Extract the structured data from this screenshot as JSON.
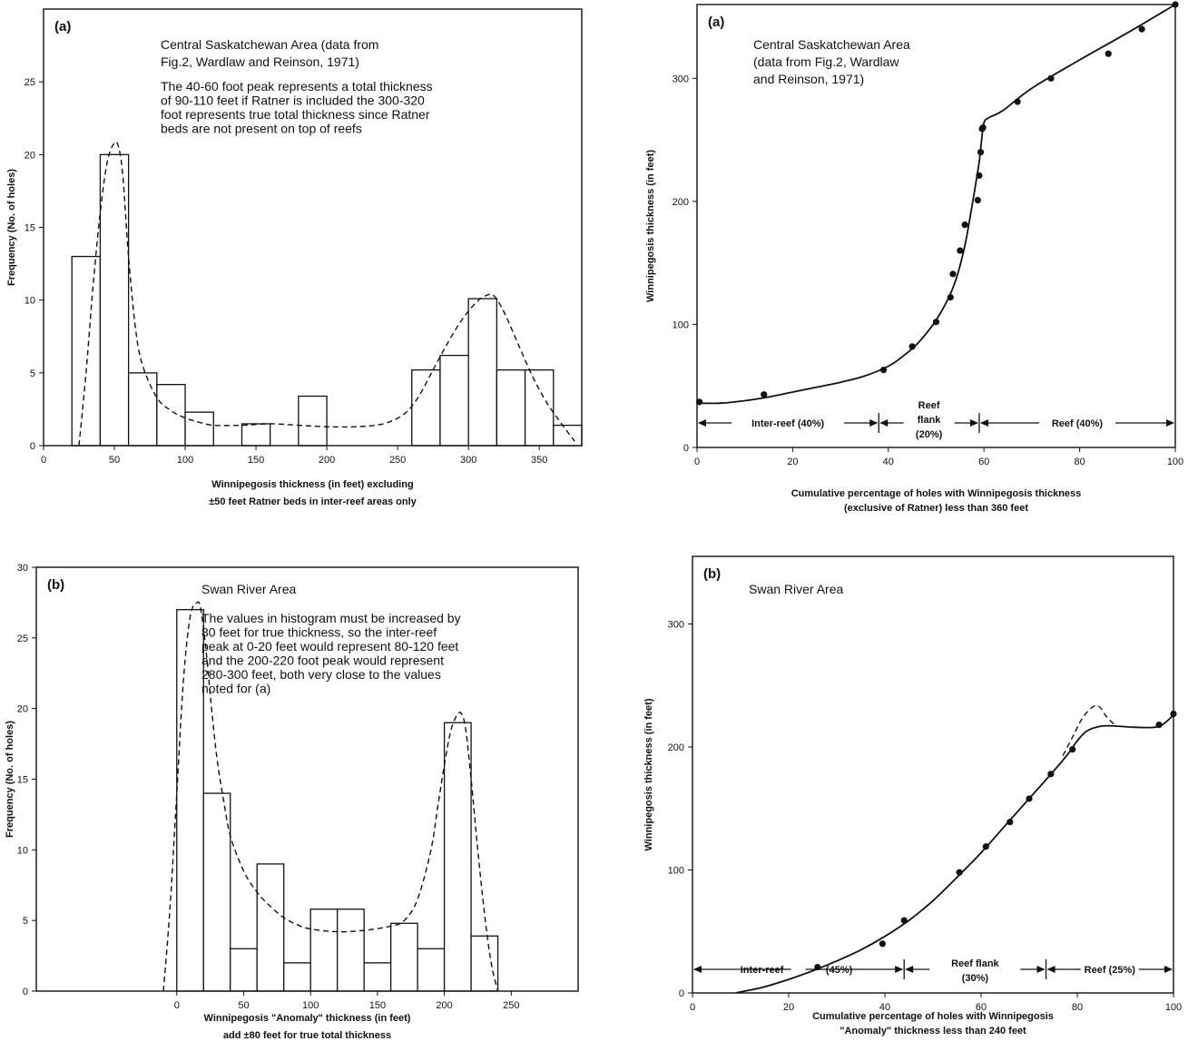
{
  "chart_data": [
    {
      "id": "hist_a",
      "type": "bar",
      "panel_label": "(a)",
      "title": "Central Saskatchewan Area (data from",
      "title_line2": "Fig.2, Wardlaw and Reinson, 1971)",
      "note_lines": [
        "The 40-60 foot peak represents a total thickness",
        "of 90-110 feet if Ratner is included the 300-320",
        "foot represents true total thickness since Ratner",
        "beds are not present on top of reefs"
      ],
      "xlabel": "Winnipegosis thickness (in feet) excluding",
      "xlabel_line2": "±50 feet Ratner beds in inter-reef areas only",
      "ylabel": "Frequency (No. of holes)",
      "xlim": [
        0,
        380
      ],
      "ylim": [
        0,
        30
      ],
      "xticks": [
        0,
        50,
        100,
        150,
        200,
        250,
        300,
        350
      ],
      "yticks": [
        0,
        5,
        10,
        15,
        20,
        25
      ],
      "bins": [
        {
          "x0": 20,
          "x1": 40,
          "value": 13
        },
        {
          "x0": 40,
          "x1": 60,
          "value": 20
        },
        {
          "x0": 60,
          "x1": 80,
          "value": 5
        },
        {
          "x0": 80,
          "x1": 100,
          "value": 4.2
        },
        {
          "x0": 100,
          "x1": 120,
          "value": 2.3
        },
        {
          "x0": 140,
          "x1": 160,
          "value": 1.5
        },
        {
          "x0": 180,
          "x1": 200,
          "value": 3.4
        },
        {
          "x0": 260,
          "x1": 280,
          "value": 5.2
        },
        {
          "x0": 280,
          "x1": 300,
          "value": 6.2
        },
        {
          "x0": 300,
          "x1": 320,
          "value": 10.1
        },
        {
          "x0": 320,
          "x1": 340,
          "value": 5.2
        },
        {
          "x0": 340,
          "x1": 360,
          "value": 5.2
        },
        {
          "x0": 360,
          "x1": 380,
          "value": 1.4
        }
      ],
      "fit_curve": {
        "style": "dashed",
        "x": [
          25,
          30,
          35,
          40,
          45,
          50,
          53,
          56,
          60,
          65,
          70,
          80,
          90,
          100,
          110,
          120,
          140,
          160,
          180,
          200,
          220,
          240,
          255,
          265,
          275,
          285,
          295,
          305,
          312,
          318,
          325,
          335,
          345,
          355,
          365,
          375
        ],
        "y": [
          0,
          5,
          11,
          16,
          19.5,
          20.8,
          20.5,
          18.5,
          13,
          8,
          5.5,
          3.3,
          2.4,
          1.9,
          1.6,
          1.4,
          1.4,
          1.5,
          1.4,
          1.3,
          1.3,
          1.5,
          2.2,
          3.4,
          5.2,
          7,
          8.6,
          9.8,
          10.3,
          10.3,
          9.2,
          7,
          4.8,
          3,
          1.6,
          0.3
        ]
      }
    },
    {
      "id": "cum_a",
      "type": "scatter",
      "panel_label": "(a)",
      "title": "Central Saskatchewan Area",
      "title_lines": [
        "(data from Fig.2, Wardlaw",
        "and Reinson, 1971)"
      ],
      "xlabel": "Cumulative percentage of holes with Winnipegosis thickness",
      "xlabel_line2": "(exclusive of Ratner) less than 360 feet",
      "ylabel": "Winnipegosis thickness (in feet)",
      "xlim": [
        0,
        100
      ],
      "ylim": [
        0,
        360
      ],
      "xticks": [
        0,
        20,
        40,
        60,
        80,
        100
      ],
      "yticks": [
        0,
        100,
        200,
        300
      ],
      "points": {
        "x": [
          0.5,
          14,
          39,
          45,
          50,
          53,
          53.5,
          55,
          56,
          58.7,
          59,
          59.3,
          59.6,
          59.8,
          67,
          74,
          86,
          93,
          100
        ],
        "y": [
          37,
          43,
          63,
          82,
          102,
          122,
          141,
          160,
          181,
          201,
          221,
          240,
          259,
          260,
          281,
          300,
          320,
          340,
          360
        ]
      },
      "fit_curve": {
        "x": [
          0,
          5,
          10,
          15,
          20,
          25,
          30,
          35,
          40,
          43,
          46,
          49,
          51,
          53,
          54.5,
          56,
          57,
          58,
          59,
          59.5,
          60,
          61,
          64,
          70,
          80,
          90,
          100
        ],
        "y": [
          36,
          36,
          38,
          41,
          45,
          49,
          53,
          58,
          66,
          74,
          84,
          98,
          110,
          125,
          141,
          164,
          185,
          208,
          232,
          250,
          264,
          268,
          274,
          292,
          315,
          337,
          360
        ]
      },
      "regions": [
        {
          "label": "Inter-reef (40%)",
          "from": 0,
          "to": 38
        },
        {
          "label": "Reef",
          "label2": "flank",
          "label3": "(20%)",
          "from": 38,
          "to": 59
        },
        {
          "label": "Reef (40%)",
          "from": 59,
          "to": 100
        }
      ]
    },
    {
      "id": "hist_b",
      "type": "bar",
      "panel_label": "(b)",
      "title": "Swan River Area",
      "note_lines": [
        "The values in histogram must be increased by",
        "80 feet for true thickness, so the inter-reef",
        "peak at 0-20 feet would represent 80-120 feet",
        "and the 200-220 foot peak would represent",
        "280-300 feet, both very close to the values",
        "noted for (a)"
      ],
      "xlabel": "Winnipegosis \"Anomaly\" thickness (in feet)",
      "xlabel_line2": "add ±80 feet for true total thickness",
      "ylabel": "Frequency (No. of holes)",
      "xlim": [
        -105,
        300
      ],
      "ylim": [
        0,
        30
      ],
      "xticks": [
        0,
        50,
        100,
        150,
        200,
        250
      ],
      "yticks": [
        0,
        5,
        10,
        15,
        20,
        25,
        30
      ],
      "bins": [
        {
          "x0": 0,
          "x1": 20,
          "value": 27
        },
        {
          "x0": 20,
          "x1": 40,
          "value": 14
        },
        {
          "x0": 40,
          "x1": 60,
          "value": 3
        },
        {
          "x0": 60,
          "x1": 80,
          "value": 9
        },
        {
          "x0": 80,
          "x1": 100,
          "value": 2
        },
        {
          "x0": 100,
          "x1": 120,
          "value": 5.8
        },
        {
          "x0": 120,
          "x1": 140,
          "value": 5.8
        },
        {
          "x0": 140,
          "x1": 160,
          "value": 2
        },
        {
          "x0": 160,
          "x1": 180,
          "value": 4.8
        },
        {
          "x0": 180,
          "x1": 200,
          "value": 3
        },
        {
          "x0": 200,
          "x1": 220,
          "value": 19
        },
        {
          "x0": 220,
          "x1": 240,
          "value": 3.9
        }
      ],
      "fit_curve": {
        "style": "dashed",
        "x": [
          -10,
          -5,
          0,
          5,
          10,
          15,
          18,
          22,
          26,
          30,
          35,
          40,
          50,
          60,
          70,
          80,
          90,
          100,
          120,
          140,
          160,
          170,
          180,
          190,
          195,
          200,
          205,
          210,
          213,
          216,
          220,
          225,
          230,
          235,
          240
        ],
        "y": [
          0,
          6,
          14,
          22,
          26.5,
          27.5,
          27,
          24,
          20,
          16.5,
          13.5,
          11,
          8.5,
          7,
          6,
          5.2,
          4.7,
          4.4,
          4.2,
          4.3,
          4.6,
          5,
          6.5,
          10,
          13,
          16,
          18.5,
          19.6,
          19.6,
          18.5,
          15,
          10,
          5.5,
          2,
          0
        ]
      }
    },
    {
      "id": "cum_b",
      "type": "scatter",
      "panel_label": "(b)",
      "title": "Swan River Area",
      "xlabel": "Cumulative percentage of holes with Winnipegosis",
      "xlabel_line2": "\"Anomaly\" thickness less than 240 feet",
      "ylabel": "Winnipegosis thickness (in feet)",
      "xlim": [
        0,
        100
      ],
      "ylim": [
        0,
        355
      ],
      "xticks": [
        0,
        20,
        40,
        60,
        80,
        100
      ],
      "yticks": [
        0,
        100,
        200,
        300
      ],
      "points": {
        "x": [
          26,
          39.5,
          44,
          55.5,
          61,
          66,
          70,
          74.5,
          79,
          97,
          100
        ],
        "y": [
          21,
          40,
          59,
          98,
          119,
          139,
          158,
          178,
          198,
          218,
          227
        ]
      },
      "fit_curve": {
        "x": [
          9,
          15,
          20,
          25,
          30,
          35,
          40,
          45,
          50,
          55,
          60,
          65,
          70,
          75,
          78,
          80,
          82,
          85,
          88,
          92,
          96,
          98,
          100
        ],
        "y": [
          0,
          5,
          11,
          18,
          26,
          35,
          46,
          59,
          75,
          94,
          114,
          136,
          158,
          180,
          194,
          205,
          213,
          217,
          217,
          216,
          216,
          219,
          226
        ]
      },
      "dashed_curve": {
        "x": [
          77,
          79,
          81,
          83,
          84.5,
          86,
          88
        ],
        "y": [
          193,
          208,
          223,
          232,
          233,
          225,
          217
        ]
      },
      "regions": [
        {
          "label": "Inter-reef",
          "label_b": "(45%)",
          "from": 0,
          "to": 44
        },
        {
          "label": "Reef flank",
          "label2": "(30%)",
          "from": 44,
          "to": 73.5
        },
        {
          "label": "Reef (25%)",
          "from": 73.5,
          "to": 100
        }
      ]
    }
  ]
}
